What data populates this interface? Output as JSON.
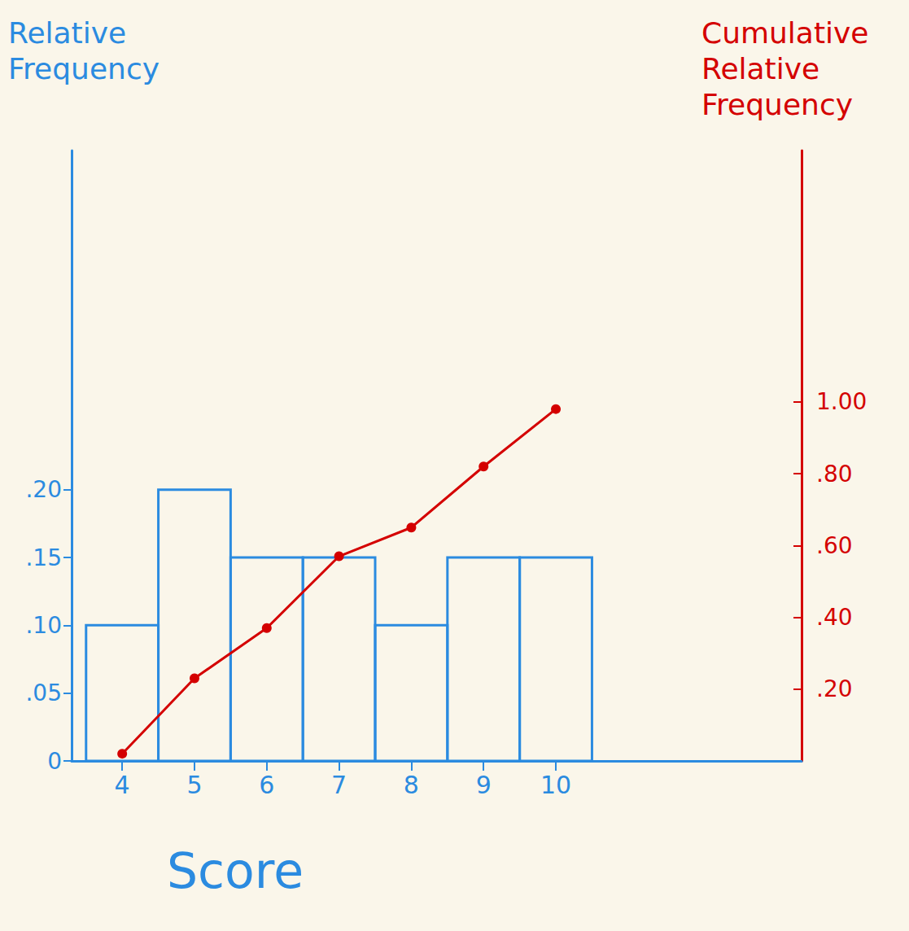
{
  "chart_data": {
    "type": "bar",
    "x_label": "Score",
    "y_label": "Relative Frequency",
    "y2_label": "Cumulative Relative Frequency",
    "x": [
      4,
      5,
      6,
      7,
      8,
      9,
      10
    ],
    "series": [
      {
        "type": "bar",
        "color": "#2b8be0",
        "values": [
          0.1,
          0.2,
          0.15,
          0.15,
          0.1,
          0.15,
          0.15
        ]
      },
      {
        "type": "line",
        "axis": "y2",
        "color": "#d40000",
        "marker": "circle",
        "values": [
          0.02,
          0.23,
          0.37,
          0.57,
          0.65,
          0.82,
          0.98
        ]
      }
    ],
    "xlim": [
      3.3,
      13.4
    ],
    "xticks": [
      4,
      5,
      6,
      7,
      8,
      9,
      10
    ],
    "ylim": [
      0,
      0.45
    ],
    "yticks": [
      {
        "value": 0,
        "label": "0"
      },
      {
        "value": 0.05,
        "label": ".05"
      },
      {
        "value": 0.1,
        "label": ".10"
      },
      {
        "value": 0.15,
        "label": ".15"
      },
      {
        "value": 0.2,
        "label": ".20"
      }
    ],
    "y2lim": [
      0,
      1.7
    ],
    "y2ticks": [
      {
        "value": 0.2,
        "label": ".20"
      },
      {
        "value": 0.4,
        "label": ".40"
      },
      {
        "value": 0.6,
        "label": ".60"
      },
      {
        "value": 0.8,
        "label": ".80"
      },
      {
        "value": 1,
        "label": "1.00"
      }
    ],
    "grid": false
  }
}
